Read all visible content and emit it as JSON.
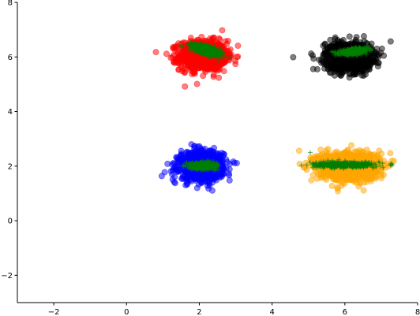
{
  "chart_data": {
    "type": "scatter",
    "title": "",
    "xlabel": "",
    "ylabel": "",
    "xlim": [
      -3,
      8
    ],
    "ylim": [
      -3,
      8
    ],
    "x_ticks": [
      -2,
      0,
      2,
      4,
      6,
      8
    ],
    "y_ticks": [
      -2,
      0,
      2,
      4,
      6,
      8
    ],
    "x_tick_labels": [
      "−2",
      "0",
      "2",
      "4",
      "6",
      "8"
    ],
    "y_tick_labels": [
      "−2",
      "0",
      "2",
      "4",
      "6",
      "8"
    ],
    "spines": {
      "top": false,
      "right": false,
      "left": true,
      "bottom": true
    },
    "grid": false,
    "legend": "none",
    "clusters": [
      {
        "color": "#ff0000",
        "marker": "circle",
        "opacity": 0.5,
        "center": [
          2.1,
          6.05
        ],
        "spread": [
          0.32,
          0.27
        ],
        "points": 1000,
        "overlay": {
          "color": "#008000",
          "marker": "plus",
          "center": [
            2.2,
            6.25
          ],
          "spread": [
            0.22,
            0.08
          ],
          "angle_deg": -25
        }
      },
      {
        "color": "#000000",
        "marker": "circle",
        "opacity": 0.5,
        "center": [
          6.1,
          6.0
        ],
        "spread": [
          0.32,
          0.26
        ],
        "points": 1000,
        "outliers": [
          [
            4.58,
            5.99
          ]
        ],
        "overlay": {
          "color": "#008000",
          "marker": "plus",
          "center": [
            6.25,
            6.2
          ],
          "spread": [
            0.2,
            0.05
          ],
          "angle_deg": 8
        }
      },
      {
        "color": "#0000ff",
        "marker": "circle",
        "opacity": 0.5,
        "center": [
          2.05,
          2.02
        ],
        "spread": [
          0.3,
          0.26
        ],
        "points": 1000,
        "overlay": {
          "color": "#008000",
          "marker": "plus",
          "center": [
            2.1,
            2.02
          ],
          "spread": [
            0.18,
            0.06
          ],
          "angle_deg": 0
        }
      },
      {
        "color": "#ffa500",
        "marker": "circle",
        "opacity": 0.5,
        "center": [
          6.1,
          2.0
        ],
        "spread": [
          0.42,
          0.26
        ],
        "points": 1000,
        "overlay": {
          "color": "#008000",
          "marker": "plus",
          "center": [
            6.0,
            2.05
          ],
          "spread": [
            0.4,
            0.05
          ],
          "angle_deg": 0,
          "outliers": [
            [
              5.05,
              2.5
            ]
          ]
        }
      }
    ]
  }
}
